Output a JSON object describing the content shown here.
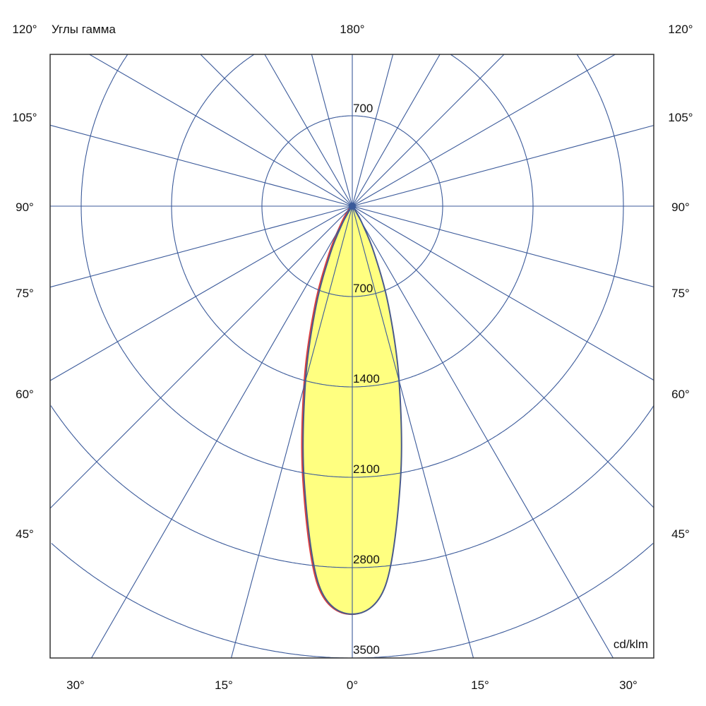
{
  "chart_data": {
    "type": "polar",
    "title": "Углы гамма",
    "unit_label": "cd/klm",
    "top_label": "180°",
    "radial_ticks": [
      700,
      1400,
      2100,
      2800,
      3500
    ],
    "radial_top_label": "700",
    "radial_max": 3500,
    "angle_step_deg": 15,
    "side_labels": [
      "120°",
      "105°",
      "90°",
      "75°",
      "60°",
      "45°"
    ],
    "bottom_labels": [
      "30°",
      "15°",
      "0°",
      "15°",
      "30°"
    ],
    "grid": true,
    "colors": {
      "grid": "#3b5a9a",
      "fill": "#ffff80",
      "curve": "#4a5a8a",
      "curve_alt": "#e04040",
      "frame": "#333333"
    },
    "series": [
      {
        "gamma": [
          0,
          5,
          10,
          15,
          20,
          25,
          30,
          35,
          40,
          45
        ],
        "intensity": [
          3160,
          2950,
          2150,
          1400,
          820,
          400,
          150,
          40,
          5,
          0
        ]
      }
    ]
  }
}
